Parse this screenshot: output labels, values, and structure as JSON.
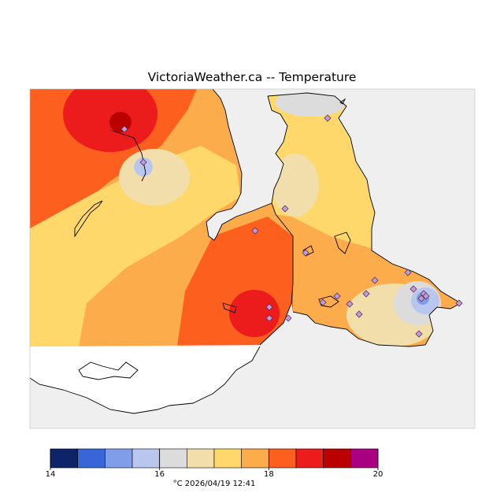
{
  "title": "VictoriaWeather.ca -- Temperature",
  "timestamp": "°C   2026/04/19  12:41",
  "legend": {
    "ticks": [
      "14",
      "16",
      "18",
      "20"
    ],
    "bins": [
      {
        "min": 14.0,
        "max": 14.5,
        "color": "#0d2568"
      },
      {
        "min": 14.5,
        "max": 15.0,
        "color": "#3866d6"
      },
      {
        "min": 15.0,
        "max": 15.5,
        "color": "#7f9de8"
      },
      {
        "min": 15.5,
        "max": 16.0,
        "color": "#b9c6ee"
      },
      {
        "min": 16.0,
        "max": 16.5,
        "color": "#dcdcdc"
      },
      {
        "min": 16.5,
        "max": 17.0,
        "color": "#f2deaa"
      },
      {
        "min": 17.0,
        "max": 17.5,
        "color": "#ffd86c"
      },
      {
        "min": 17.5,
        "max": 18.0,
        "color": "#fdac4c"
      },
      {
        "min": 18.0,
        "max": 18.5,
        "color": "#fd5f1e"
      },
      {
        "min": 18.5,
        "max": 19.0,
        "color": "#ec1c1c"
      },
      {
        "min": 19.0,
        "max": 19.5,
        "color": "#bb0000"
      },
      {
        "min": 19.5,
        "max": 20.0,
        "color": "#a80080"
      }
    ]
  },
  "colors": {
    "water": "#efefef",
    "land_outside": "#ffffff",
    "coastline": "#000000",
    "station_marker": "#b5a0d8"
  }
}
